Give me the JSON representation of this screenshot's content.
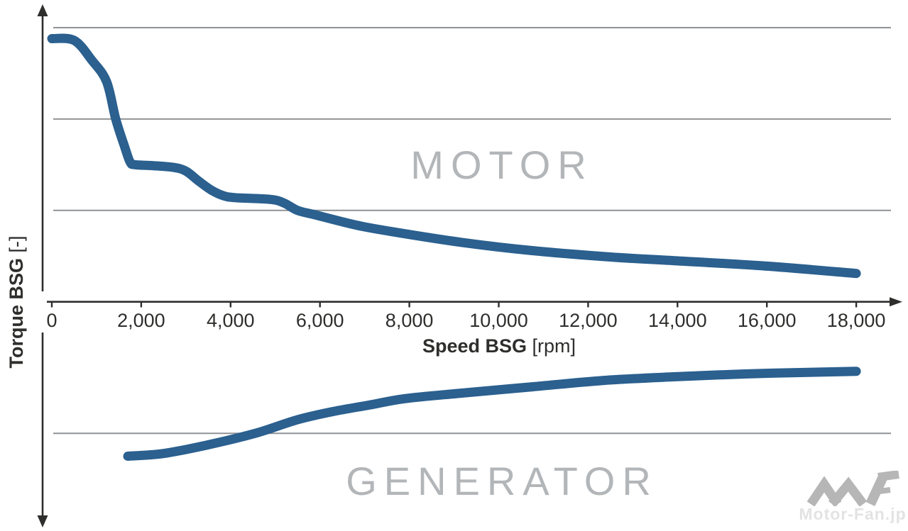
{
  "chart_data": {
    "type": "line",
    "title": "",
    "xlabel": "Speed BSG",
    "xlabel_unit": "[rpm]",
    "ylabel": "Torque BSG",
    "ylabel_unit": "[-]",
    "x_ticks": [
      "0",
      "2,000",
      "4,000",
      "6,000",
      "8,000",
      "10,000",
      "12,000",
      "14,000",
      "16,000",
      "18,000"
    ],
    "x_tick_values": [
      0,
      2000,
      4000,
      6000,
      8000,
      10000,
      12000,
      14000,
      16000,
      18000
    ],
    "x_range": [
      0,
      19200
    ],
    "grid": true,
    "y_axis_numeric_labels": false,
    "y_gridline_values": [
      3,
      2,
      1,
      -1.44
    ],
    "legend_position": "none",
    "regions": [
      {
        "label": "MOTOR"
      },
      {
        "label": "GENERATOR"
      }
    ],
    "series": [
      {
        "name": "motor-torque-curve",
        "points": [
          [
            0,
            2.88
          ],
          [
            500,
            2.86
          ],
          [
            900,
            2.64
          ],
          [
            1225,
            2.41
          ],
          [
            1430,
            2.0
          ],
          [
            1620,
            1.71
          ],
          [
            1750,
            1.53
          ],
          [
            1860,
            1.5
          ],
          [
            2250,
            1.49
          ],
          [
            2730,
            1.47
          ],
          [
            3000,
            1.43
          ],
          [
            3290,
            1.32
          ],
          [
            3575,
            1.22
          ],
          [
            3845,
            1.16
          ],
          [
            4100,
            1.14
          ],
          [
            4900,
            1.12
          ],
          [
            5200,
            1.08
          ],
          [
            5500,
            1.0
          ],
          [
            5900,
            0.95
          ],
          [
            6800,
            0.84
          ],
          [
            7580,
            0.77
          ],
          [
            9170,
            0.65
          ],
          [
            10750,
            0.56
          ],
          [
            12500,
            0.49
          ],
          [
            13930,
            0.45
          ],
          [
            16000,
            0.39
          ],
          [
            18000,
            0.31
          ]
        ]
      },
      {
        "name": "generator-torque-curve",
        "points": [
          [
            1700,
            -1.69
          ],
          [
            2500,
            -1.66
          ],
          [
            3450,
            -1.57
          ],
          [
            4550,
            -1.44
          ],
          [
            5500,
            -1.29
          ],
          [
            6300,
            -1.2
          ],
          [
            7100,
            -1.13
          ],
          [
            7900,
            -1.06
          ],
          [
            9150,
            -1.0
          ],
          [
            10750,
            -0.93
          ],
          [
            12350,
            -0.86
          ],
          [
            13950,
            -0.82
          ],
          [
            15500,
            -0.79
          ],
          [
            17100,
            -0.77
          ],
          [
            18000,
            -0.76
          ]
        ]
      }
    ],
    "watermark": {
      "text": "Motor-Fan.jp",
      "logo": "MF-logo"
    }
  },
  "colors": {
    "curve": "#2b608f",
    "axis": "#2e2e2d",
    "tick_label": "#2e2e2d",
    "gridline": "#909396",
    "region_label": "#b3b6b9",
    "watermark_logo": "#b6b6b6",
    "watermark_text": "#e3e3e3"
  }
}
